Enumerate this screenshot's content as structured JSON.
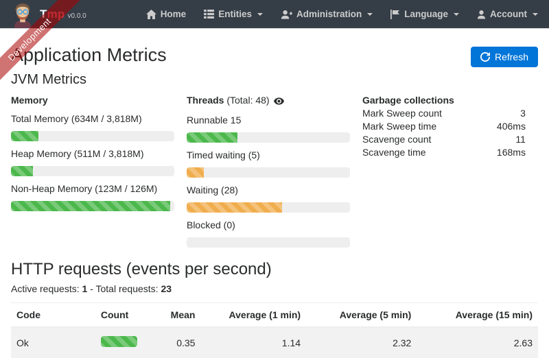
{
  "colors": {
    "green": "#4cb84c",
    "orange": "#f0ad4e",
    "primary": "#0275d8",
    "navbar_bg": "#353d47",
    "ribbon_bg": "rgba(170,0,0,0.55)"
  },
  "ribbon": {
    "label": "Development"
  },
  "navbar": {
    "brand": {
      "first": "T",
      "rest": "mp",
      "version": "v0.0.0"
    },
    "items": [
      {
        "label": "Home"
      },
      {
        "label": "Entities"
      },
      {
        "label": "Administration"
      },
      {
        "label": "Language"
      },
      {
        "label": "Account"
      }
    ]
  },
  "header": {
    "title": "Application Metrics",
    "refresh_label": "Refresh",
    "subtitle": "JVM Metrics"
  },
  "jvm": {
    "memory": {
      "title": "Memory",
      "bars": [
        {
          "label": "Total Memory (634M / 3,818M)",
          "percent": 16.6,
          "color": "green"
        },
        {
          "label": "Heap Memory (511M / 3,818M)",
          "percent": 13.4,
          "color": "green"
        },
        {
          "label": "Non-Heap Memory (123M / 126M)",
          "percent": 97.6,
          "color": "green"
        }
      ]
    },
    "threads": {
      "title": "Threads",
      "total_suffix": "(Total: 48)",
      "bars": [
        {
          "label": "Runnable 15",
          "percent": 31.3,
          "color": "green"
        },
        {
          "label": "Timed waiting (5)",
          "percent": 10.4,
          "color": "orange"
        },
        {
          "label": "Waiting (28)",
          "percent": 58.3,
          "color": "orange"
        },
        {
          "label": "Blocked (0)",
          "percent": 0,
          "color": "green"
        }
      ]
    },
    "gc": {
      "title": "Garbage collections",
      "rows": [
        {
          "label": "Mark Sweep count",
          "value": "3"
        },
        {
          "label": "Mark Sweep time",
          "value": "406ms"
        },
        {
          "label": "Scavenge count",
          "value": "11"
        },
        {
          "label": "Scavenge time",
          "value": "168ms"
        }
      ]
    }
  },
  "http": {
    "title": "HTTP requests (events per second)",
    "active_label": "Active requests:",
    "active_value": "1",
    "separator": "-",
    "total_label": "Total requests:",
    "total_value": "23",
    "table": {
      "headers": [
        "Code",
        "Count",
        "Mean",
        "Average (1 min)",
        "Average (5 min)",
        "Average (15 min)"
      ],
      "rows": [
        {
          "code": "Ok",
          "count_percent": 100,
          "count_color": "green",
          "mean": "0.35",
          "avg1": "1.14",
          "avg5": "2.32",
          "avg15": "2.63"
        }
      ]
    }
  }
}
